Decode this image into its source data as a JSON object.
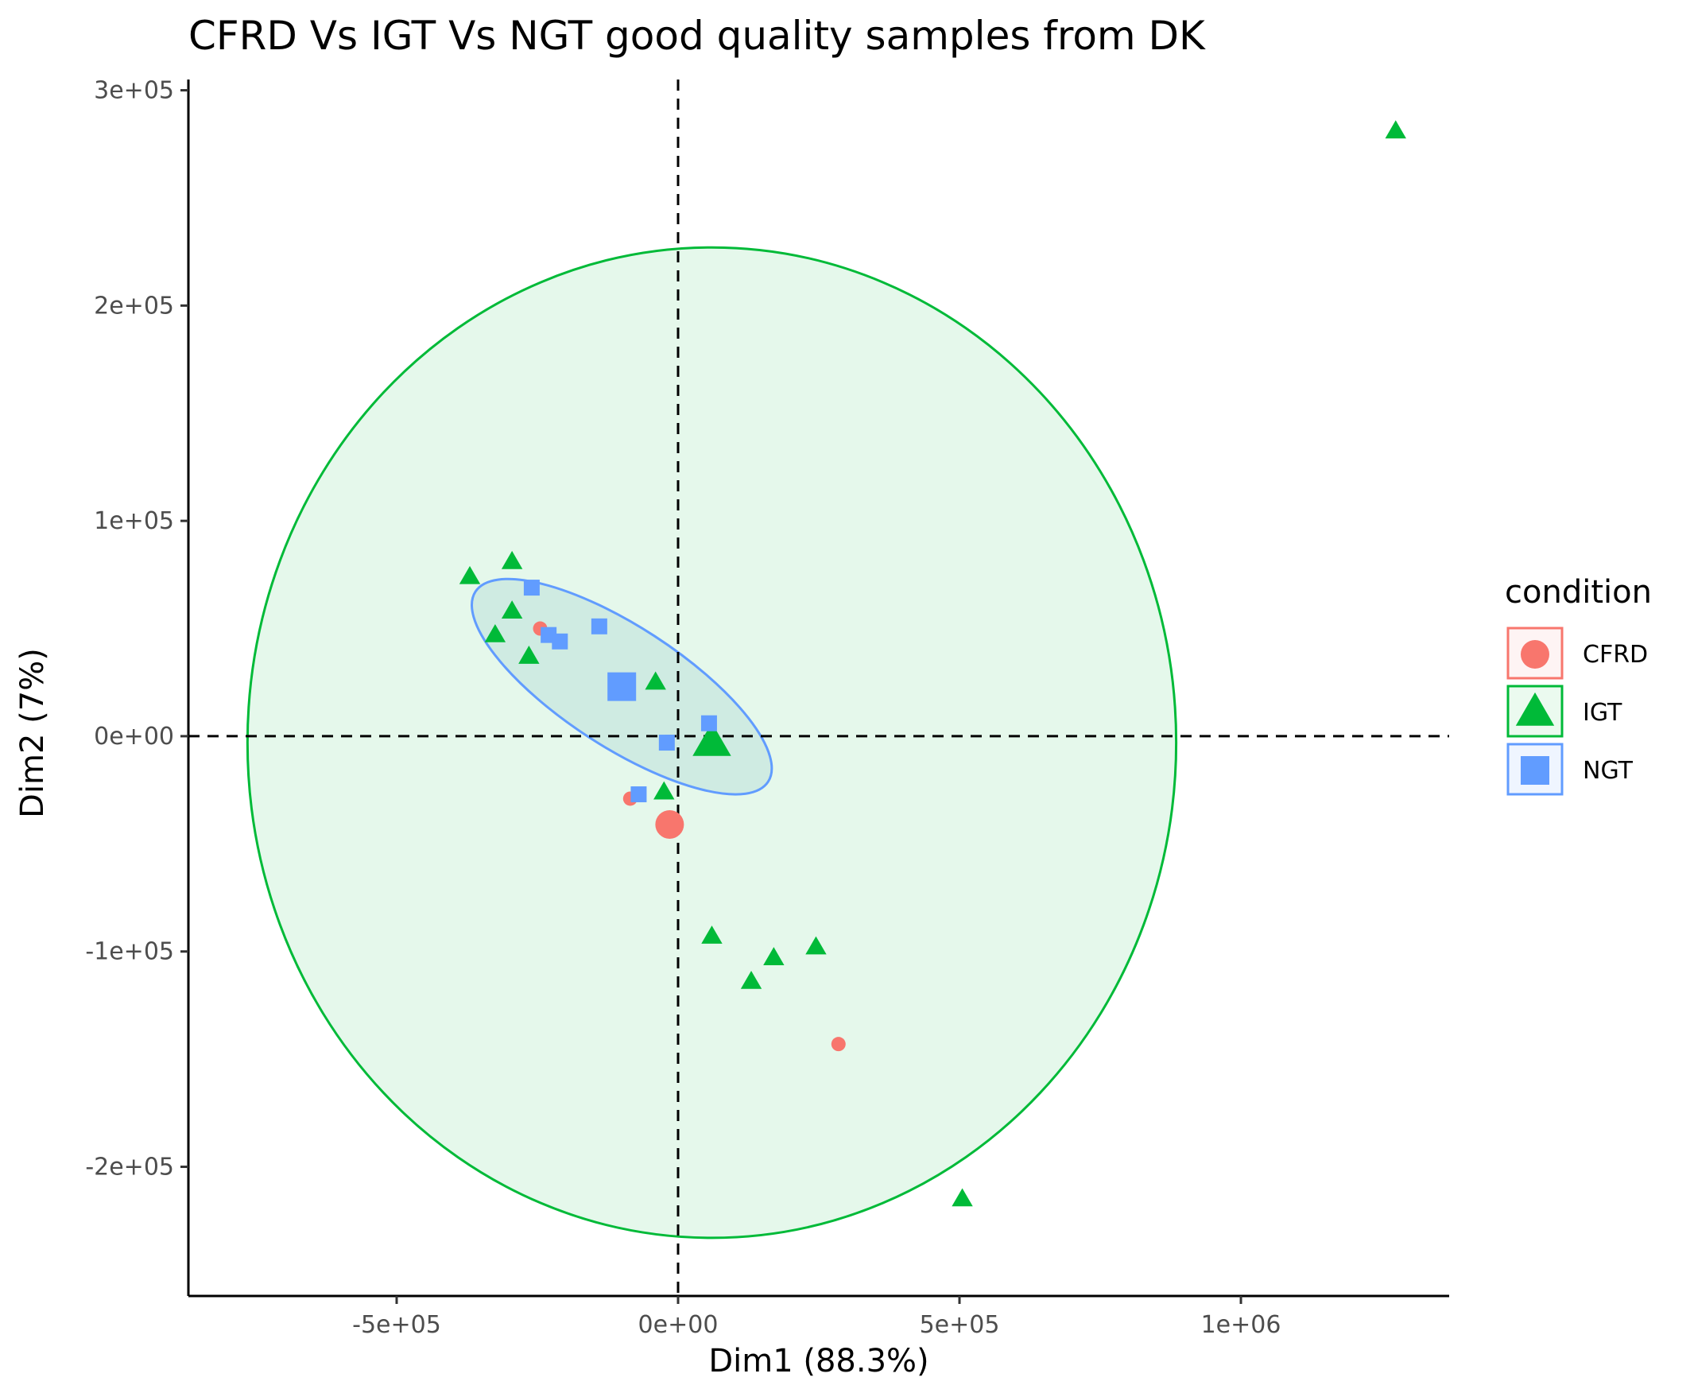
{
  "chart_data": {
    "type": "scatter",
    "title": "CFRD Vs IGT Vs NGT good quality samples from DK",
    "xlabel": "Dim1 (88.3%)",
    "ylabel": "Dim2 (7%)",
    "xlim": [
      -870000,
      1370000
    ],
    "ylim": [
      -260000,
      305000
    ],
    "x_ticks": [
      {
        "value": -500000,
        "label": "-5e+05"
      },
      {
        "value": 0,
        "label": "0e+00"
      },
      {
        "value": 500000,
        "label": "5e+05"
      },
      {
        "value": 1000000,
        "label": "1e+06"
      }
    ],
    "y_ticks": [
      {
        "value": 300000,
        "label": "3e+05"
      },
      {
        "value": 200000,
        "label": "2e+05"
      },
      {
        "value": 100000,
        "label": "1e+05"
      },
      {
        "value": 0,
        "label": "0e+00"
      },
      {
        "value": -100000,
        "label": "-1e+05"
      },
      {
        "value": -200000,
        "label": "-2e+05"
      }
    ],
    "grid": false,
    "reference_lines": {
      "x": 0,
      "y": 0,
      "style": "dashed"
    },
    "legend": {
      "title": "condition",
      "position": "right"
    },
    "series": [
      {
        "name": "CFRD",
        "color": "#F8766D",
        "shape": "circle",
        "points": [
          [
            -245000,
            50000
          ],
          [
            -85000,
            -29000
          ],
          [
            285000,
            -143000
          ]
        ],
        "centroid": [
          -15000,
          -41000
        ]
      },
      {
        "name": "IGT",
        "color": "#00BA38",
        "shape": "triangle",
        "points": [
          [
            -370000,
            74000
          ],
          [
            -295000,
            81000
          ],
          [
            -295000,
            58000
          ],
          [
            -325000,
            47000
          ],
          [
            -265000,
            37000
          ],
          [
            -40000,
            25000
          ],
          [
            -25000,
            -26000
          ],
          [
            60000,
            -93000
          ],
          [
            170000,
            -103000
          ],
          [
            130000,
            -114000
          ],
          [
            245000,
            -98000
          ],
          [
            505000,
            -215000
          ],
          [
            1275000,
            281000
          ]
        ],
        "centroid": [
          60000,
          -3000
        ],
        "ellipse": {
          "center": [
            60000,
            -3000
          ],
          "rx": 825000,
          "ry": 230000,
          "angle": 0
        }
      },
      {
        "name": "NGT",
        "color": "#619CFF",
        "shape": "square",
        "points": [
          [
            -260000,
            69000
          ],
          [
            -230000,
            47000
          ],
          [
            -210000,
            44000
          ],
          [
            -140000,
            51000
          ],
          [
            55000,
            6000
          ],
          [
            -20000,
            -3000
          ],
          [
            -70000,
            -27000
          ]
        ],
        "centroid": [
          -100000,
          23000
        ],
        "ellipse": {
          "center": [
            -100000,
            23000
          ],
          "rx": 310000,
          "ry": 28000,
          "angle": 33
        }
      }
    ]
  }
}
